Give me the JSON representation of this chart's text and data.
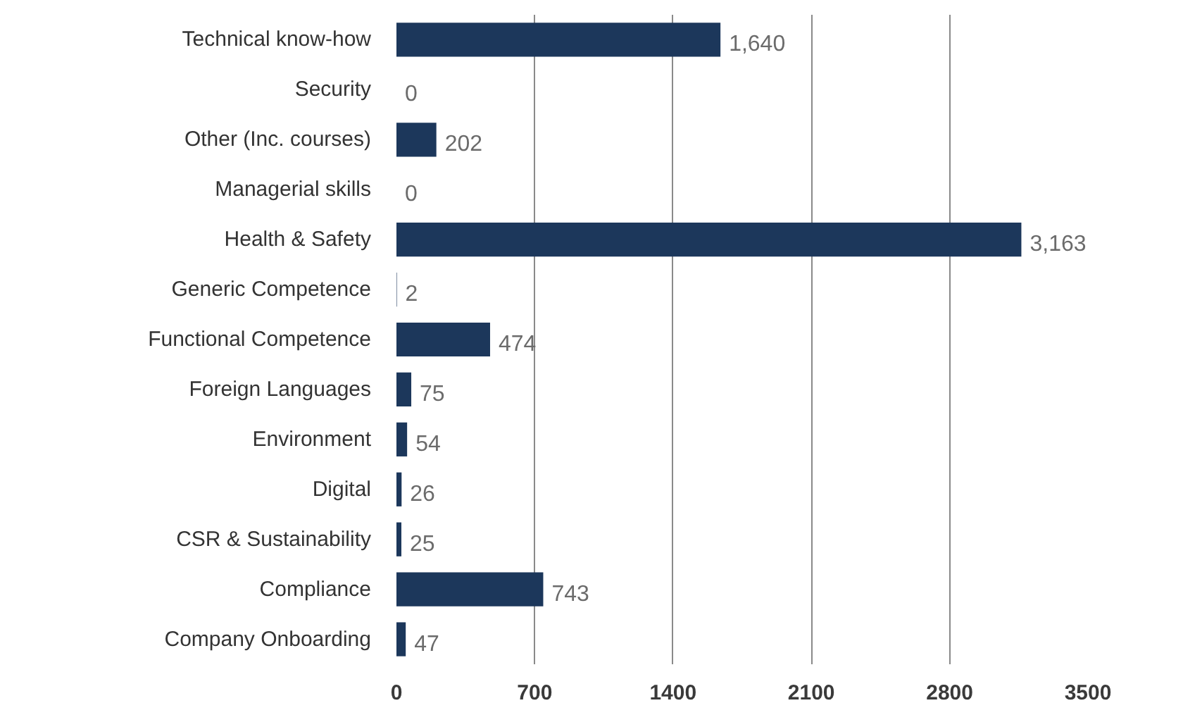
{
  "chart_data": {
    "type": "bar",
    "orientation": "horizontal",
    "categories": [
      "Technical know-how",
      "Security",
      "Other (Inc. courses)",
      "Managerial skills",
      "Health & Safety",
      "Generic Competence",
      "Functional Competence",
      "Foreign Languages",
      "Environment",
      "Digital",
      "CSR & Sustainability",
      "Compliance",
      "Company Onboarding"
    ],
    "values": [
      1640,
      0,
      202,
      0,
      3163,
      2,
      474,
      75,
      54,
      26,
      25,
      743,
      47
    ],
    "value_labels": [
      "1,640",
      "0",
      "202",
      "0",
      "3,163",
      "2",
      "474",
      "75",
      "54",
      "26",
      "25",
      "743",
      "47"
    ],
    "color": "#1c375b",
    "xlim": [
      0,
      3500
    ],
    "xticks": [
      0,
      700,
      1400,
      2100,
      2800,
      3500
    ],
    "grid": "x"
  }
}
